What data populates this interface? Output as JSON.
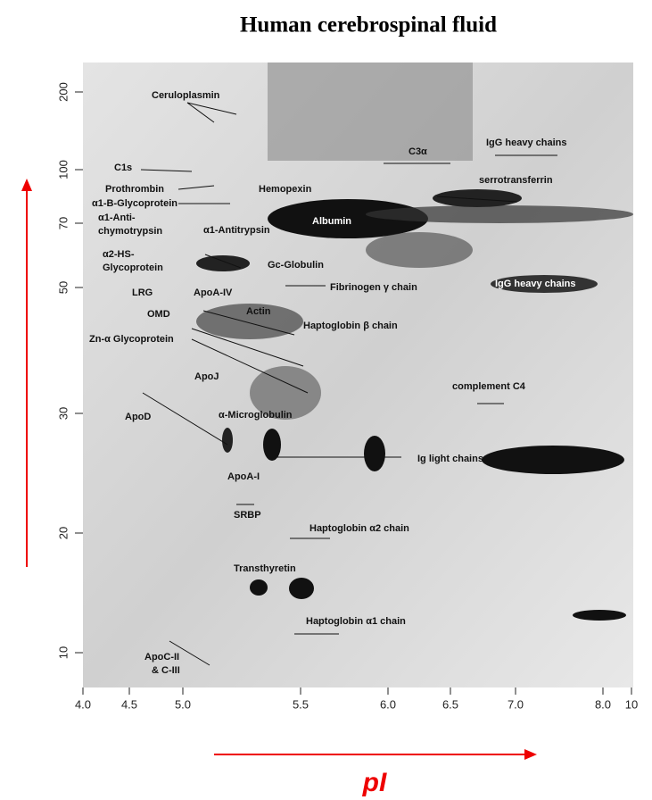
{
  "title": "Human cerebrospinal fluid",
  "y_ticks": [
    "200",
    "100",
    "70",
    "50",
    "30",
    "20",
    "10"
  ],
  "x_ticks": [
    "4.0",
    "4.5",
    "5.0",
    "5.5",
    "6.0",
    "6.5",
    "7.0",
    "8.0",
    "10"
  ],
  "x_label": "pI",
  "labels": [
    "Ceruloplasmin",
    "C1s",
    "Prothrombin",
    "α1-B-Glycoprotein",
    "Hemopexin",
    "α1-Anti-",
    "chymotrypsin",
    "α1-Antitrypsin",
    "Albumin",
    "α2-HS-",
    "Glycoprotein",
    "Gc-Globulin",
    "C3α",
    "IgG heavy chains",
    "serrotransferrin",
    "IgG heavy chains",
    "Fibrinogen γ chain",
    "LRG",
    "ApoA-IV",
    "OMD",
    "Actin",
    "Haptoglobin β chain",
    "Zn-α Glycoprotein",
    "ApoJ",
    "complement C4",
    "ApoD",
    "α-Microglobulin",
    "Ig light chains",
    "ApoA-I",
    "SRBP",
    "Haptoglobin α2 chain",
    "Transthyretin",
    "Haptoglobin α1 chain",
    "ApoC-II",
    "& C-III"
  ]
}
